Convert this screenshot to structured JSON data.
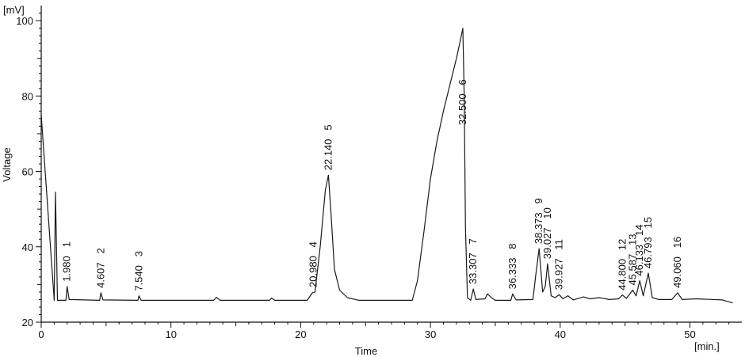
{
  "chart_data": {
    "type": "line",
    "title": "",
    "xlabel": "Time",
    "ylabel": "Voltage",
    "x_unit": "[min.]",
    "y_unit": "[mV]",
    "xlim": [
      0,
      54
    ],
    "ylim": [
      20,
      104
    ],
    "x_ticks": [
      0,
      10,
      20,
      30,
      40,
      50
    ],
    "y_ticks": [
      20,
      40,
      60,
      80,
      100
    ],
    "baseline": 25.8,
    "grid": false,
    "legend": "none",
    "line_color": "#1a1a1a",
    "series": [
      {
        "points": [
          [
            0.0,
            72.5
          ],
          [
            0.0,
            75.0
          ],
          [
            1.0,
            25.8
          ],
          [
            1.1,
            54.5
          ],
          [
            1.25,
            25.8
          ],
          [
            1.9,
            25.8
          ],
          [
            2.0,
            29.5
          ],
          [
            2.15,
            26.0
          ],
          [
            4.5,
            25.8
          ],
          [
            4.6,
            27.8
          ],
          [
            4.75,
            25.9
          ],
          [
            7.45,
            25.8
          ],
          [
            7.54,
            27.0
          ],
          [
            7.7,
            25.8
          ],
          [
            13.3,
            25.8
          ],
          [
            13.5,
            26.6
          ],
          [
            13.8,
            25.8
          ],
          [
            17.6,
            25.8
          ],
          [
            17.75,
            26.4
          ],
          [
            18.0,
            25.8
          ],
          [
            20.5,
            25.8
          ],
          [
            20.9,
            27.8
          ],
          [
            21.1,
            28.0
          ],
          [
            21.5,
            40.0
          ],
          [
            21.9,
            55.0
          ],
          [
            22.14,
            59.0
          ],
          [
            22.35,
            48.0
          ],
          [
            22.6,
            34.0
          ],
          [
            23.0,
            28.5
          ],
          [
            23.6,
            26.5
          ],
          [
            24.5,
            25.8
          ],
          [
            28.6,
            25.8
          ],
          [
            29.0,
            31.0
          ],
          [
            29.5,
            44.0
          ],
          [
            30.0,
            58.0
          ],
          [
            30.5,
            68.0
          ],
          [
            31.0,
            76.0
          ],
          [
            31.5,
            83.0
          ],
          [
            32.0,
            90.0
          ],
          [
            32.35,
            95.5
          ],
          [
            32.5,
            98.0
          ],
          [
            32.6,
            80.0
          ],
          [
            32.7,
            45.0
          ],
          [
            32.85,
            26.5
          ],
          [
            33.1,
            25.8
          ],
          [
            33.307,
            28.8
          ],
          [
            33.5,
            26.0
          ],
          [
            34.2,
            26.2
          ],
          [
            34.4,
            27.5
          ],
          [
            34.7,
            26.5
          ],
          [
            35.0,
            25.8
          ],
          [
            36.2,
            25.8
          ],
          [
            36.333,
            27.5
          ],
          [
            36.6,
            25.9
          ],
          [
            37.9,
            26.0
          ],
          [
            38.1,
            32.0
          ],
          [
            38.373,
            39.5
          ],
          [
            38.65,
            28.0
          ],
          [
            38.85,
            29.5
          ],
          [
            39.027,
            35.5
          ],
          [
            39.3,
            27.0
          ],
          [
            39.6,
            26.5
          ],
          [
            39.927,
            27.3
          ],
          [
            40.2,
            26.2
          ],
          [
            40.6,
            27.0
          ],
          [
            41.0,
            25.9
          ],
          [
            41.8,
            26.7
          ],
          [
            42.3,
            26.2
          ],
          [
            43.0,
            26.5
          ],
          [
            43.8,
            26.0
          ],
          [
            44.5,
            26.2
          ],
          [
            44.8,
            27.2
          ],
          [
            45.1,
            26.3
          ],
          [
            45.587,
            28.5
          ],
          [
            45.85,
            27.0
          ],
          [
            46.133,
            31.0
          ],
          [
            46.4,
            27.0
          ],
          [
            46.793,
            33.0
          ],
          [
            47.1,
            26.5
          ],
          [
            47.6,
            26.0
          ],
          [
            48.6,
            26.0
          ],
          [
            49.06,
            27.8
          ],
          [
            49.4,
            26.0
          ],
          [
            50.5,
            26.2
          ],
          [
            52.5,
            25.9
          ],
          [
            53.3,
            25.1
          ]
        ]
      }
    ],
    "peaks": [
      {
        "number": "1",
        "time": "1.980",
        "x": 1.98,
        "y": 29.5
      },
      {
        "number": "2",
        "time": "4.607",
        "x": 4.607,
        "y": 27.8
      },
      {
        "number": "3",
        "time": "7.540",
        "x": 7.54,
        "y": 27.0
      },
      {
        "number": "4",
        "time": "20.980",
        "x": 20.98,
        "y": 28.0
      },
      {
        "number": "5",
        "time": "22.140",
        "x": 22.14,
        "y": 59.0
      },
      {
        "number": "6",
        "time": "32.500",
        "x": 32.5,
        "y": 71.0
      },
      {
        "number": "7",
        "time": "33.307",
        "x": 33.307,
        "y": 28.8
      },
      {
        "number": "8",
        "time": "36.333",
        "x": 36.333,
        "y": 27.5
      },
      {
        "number": "9",
        "time": "38.373",
        "x": 38.373,
        "y": 39.5
      },
      {
        "number": "10",
        "time": "39.027",
        "x": 39.027,
        "y": 35.5
      },
      {
        "number": "11",
        "time": "39.927",
        "x": 39.927,
        "y": 27.3
      },
      {
        "number": "12",
        "time": "44.800",
        "x": 44.8,
        "y": 27.2
      },
      {
        "number": "13",
        "time": "45.587",
        "x": 45.587,
        "y": 28.5
      },
      {
        "number": "14",
        "time": "46.133",
        "x": 46.133,
        "y": 31.0
      },
      {
        "number": "15",
        "time": "46.793",
        "x": 46.793,
        "y": 33.0
      },
      {
        "number": "16",
        "time": "49.060",
        "x": 49.06,
        "y": 27.8
      }
    ]
  }
}
